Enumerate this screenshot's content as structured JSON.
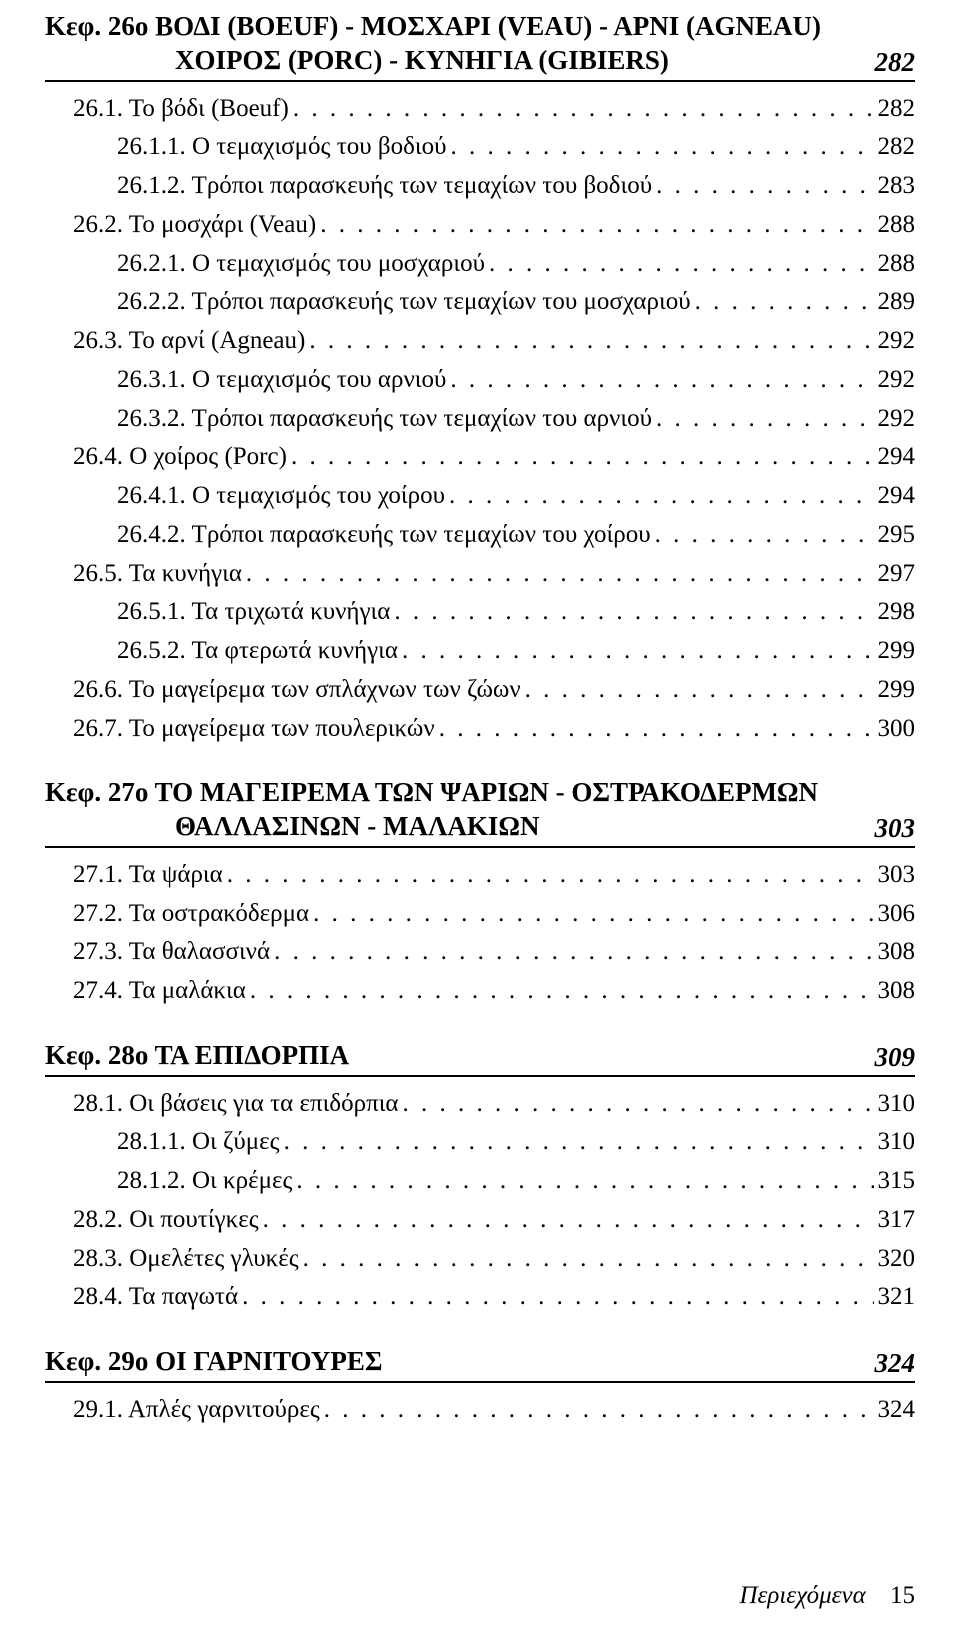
{
  "chapters": [
    {
      "prefix": "Κεφ. 26ο",
      "title_lines": [
        "ΒΟΔΙ (BOEUF) - ΜΟΣΧΑΡΙ (VEAU) - ΑΡΝΙ (AGNEAU)",
        "ΧΟΙΡΟΣ (PORC) - ΚΥΝΗΓΙΑ (GIBIERS)"
      ],
      "page": "282",
      "entries": [
        {
          "level": 1,
          "num": "26.1.",
          "text": "Το βόδι (Boeuf)",
          "page": "282"
        },
        {
          "level": 2,
          "num": "26.1.1.",
          "text": "Ο τεμαχισμός του βοδιού",
          "page": "282"
        },
        {
          "level": 2,
          "num": "26.1.2.",
          "text": "Τρόποι παρασκευής των τεμαχίων του βοδιού",
          "page": "283"
        },
        {
          "level": 1,
          "num": "26.2.",
          "text": "Το μοσχάρι (Veau)",
          "page": "288"
        },
        {
          "level": 2,
          "num": "26.2.1.",
          "text": "Ο τεμαχισμός του μοσχαριού",
          "page": "288"
        },
        {
          "level": 2,
          "num": "26.2.2.",
          "text": "Τρόποι παρασκευής των τεμαχίων του μοσχαριού",
          "page": "289"
        },
        {
          "level": 1,
          "num": "26.3.",
          "text": "Το αρνί (Agneau)",
          "page": "292"
        },
        {
          "level": 2,
          "num": "26.3.1.",
          "text": "Ο τεμαχισμός του αρνιού",
          "page": "292"
        },
        {
          "level": 2,
          "num": "26.3.2.",
          "text": "Τρόποι παρασκευής των τεμαχίων του αρνιού",
          "page": "292"
        },
        {
          "level": 1,
          "num": "26.4.",
          "text": "Ο χοίρος (Porc)",
          "page": "294"
        },
        {
          "level": 2,
          "num": "26.4.1.",
          "text": "Ο τεμαχισμός του χοίρου",
          "page": "294"
        },
        {
          "level": 2,
          "num": "26.4.2.",
          "text": "Τρόποι παρασκευής των τεμαχίων του χοίρου",
          "page": "295"
        },
        {
          "level": 1,
          "num": "26.5.",
          "text": "Τα κυνήγια",
          "page": "297"
        },
        {
          "level": 2,
          "num": "26.5.1.",
          "text": "Τα τριχωτά κυνήγια",
          "page": "298"
        },
        {
          "level": 2,
          "num": "26.5.2.",
          "text": "Τα φτερωτά κυνήγια",
          "page": "299"
        },
        {
          "level": 1,
          "num": "26.6.",
          "text": "Το μαγείρεμα των σπλάχνων των ζώων",
          "page": "299"
        },
        {
          "level": 1,
          "num": "26.7.",
          "text": "Το μαγείρεμα των πουλερικών",
          "page": "300"
        }
      ]
    },
    {
      "prefix": "Κεφ. 27ο",
      "title_lines": [
        "ΤΟ ΜΑΓΕΙΡΕΜΑ ΤΩΝ ΨΑΡΙΩΝ - ΟΣΤΡΑΚΟΔΕΡΜΩΝ",
        "ΘΑΛΛΑΣΙΝΩΝ - ΜΑΛΑΚΙΩΝ"
      ],
      "page": "303",
      "entries": [
        {
          "level": 1,
          "num": "27.1.",
          "text": "Τα ψάρια",
          "page": "303"
        },
        {
          "level": 1,
          "num": "27.2.",
          "text": "Τα οστρακόδερμα",
          "page": "306"
        },
        {
          "level": 1,
          "num": "27.3.",
          "text": "Τα θαλασσινά",
          "page": "308"
        },
        {
          "level": 1,
          "num": "27.4.",
          "text": "Τα μαλάκια",
          "page": "308"
        }
      ]
    },
    {
      "prefix": "Κεφ. 28ο",
      "title_lines": [
        "ΤΑ ΕΠΙΔΟΡΠΙΑ"
      ],
      "page": "309",
      "entries": [
        {
          "level": 1,
          "num": "28.1.",
          "text": "Οι βάσεις για τα επιδόρπια",
          "page": "310"
        },
        {
          "level": 2,
          "num": "28.1.1.",
          "text": "Οι ζύμες",
          "page": "310"
        },
        {
          "level": 2,
          "num": "28.1.2.",
          "text": "Οι κρέμες",
          "page": "315"
        },
        {
          "level": 1,
          "num": "28.2.",
          "text": "Οι πουτίγκες",
          "page": "317"
        },
        {
          "level": 1,
          "num": "28.3.",
          "text": "Ομελέτες γλυκές",
          "page": "320"
        },
        {
          "level": 1,
          "num": "28.4.",
          "text": "Τα παγωτά",
          "page": "321"
        }
      ]
    },
    {
      "prefix": "Κεφ. 29ο",
      "title_lines": [
        "ΟΙ ΓΑΡΝΙΤΟΥΡΕΣ"
      ],
      "page": "324",
      "entries": [
        {
          "level": 1,
          "num": "29.1.",
          "text": "Απλές γαρνιτούρες",
          "page": "324"
        }
      ]
    }
  ],
  "footer": {
    "word": "Περιεχόμενα",
    "page": "15"
  },
  "leaders_text": ". . . . . . . . . . . . . . . . . . . . . . . . . . . . . . . . . . . . . . . . . . . . . . . . . . . . . . . . . . . . . . . . . . ."
}
